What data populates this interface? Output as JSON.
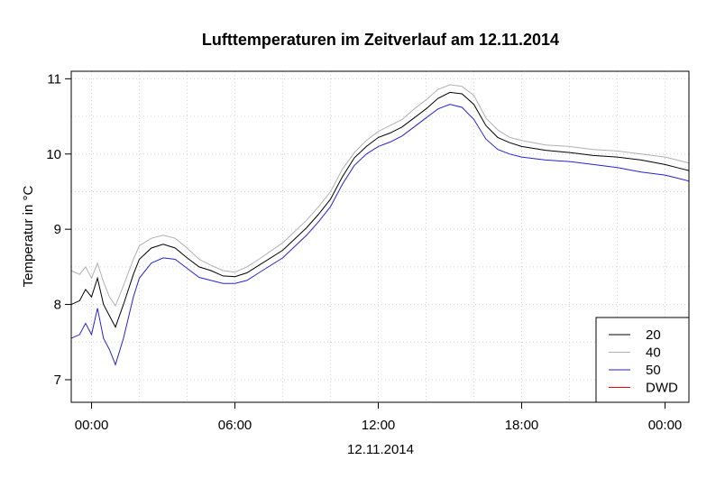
{
  "chart_data": {
    "type": "line",
    "title": "Lufttemperaturen im Zeitverlauf am 12.11.2014",
    "xlabel": "12.11.2014",
    "ylabel": "Temperatur in °C",
    "xlim": [
      "2014-11-11T23:09",
      "2014-11-13T01:00"
    ],
    "ylim": [
      6.7,
      11.1
    ],
    "x_ticks": [
      {
        "at": "2014-11-12T00:00",
        "label": "00:00"
      },
      {
        "at": "2014-11-12T06:00",
        "label": "06:00"
      },
      {
        "at": "2014-11-12T12:00",
        "label": "12:00"
      },
      {
        "at": "2014-11-12T18:00",
        "label": "18:00"
      },
      {
        "at": "2014-11-13T00:00",
        "label": "00:00"
      }
    ],
    "y_ticks": [
      7,
      8,
      9,
      10,
      11
    ],
    "grid": true,
    "legend_position": "bottom-right",
    "series": [
      {
        "name": "20",
        "color": "#000000",
        "x": [
          "2014-11-11T23:09",
          "2014-11-11T23:30",
          "2014-11-11T23:45",
          "2014-11-12T00:00",
          "2014-11-12T00:15",
          "2014-11-12T00:30",
          "2014-11-12T00:45",
          "2014-11-12T01:00",
          "2014-11-12T01:20",
          "2014-11-12T01:45",
          "2014-11-12T02:00",
          "2014-11-12T02:30",
          "2014-11-12T03:00",
          "2014-11-12T03:30",
          "2014-11-12T04:00",
          "2014-11-12T04:30",
          "2014-11-12T05:00",
          "2014-11-12T05:30",
          "2014-11-12T06:00",
          "2014-11-12T06:30",
          "2014-11-12T07:00",
          "2014-11-12T08:00",
          "2014-11-12T09:00",
          "2014-11-12T09:30",
          "2014-11-12T10:00",
          "2014-11-12T10:30",
          "2014-11-12T11:00",
          "2014-11-12T11:30",
          "2014-11-12T12:00",
          "2014-11-12T12:30",
          "2014-11-12T13:00",
          "2014-11-12T13:30",
          "2014-11-12T14:00",
          "2014-11-12T14:30",
          "2014-11-12T15:00",
          "2014-11-12T15:30",
          "2014-11-12T16:00",
          "2014-11-12T16:30",
          "2014-11-12T17:00",
          "2014-11-12T17:30",
          "2014-11-12T18:00",
          "2014-11-12T19:00",
          "2014-11-12T20:00",
          "2014-11-12T21:00",
          "2014-11-12T22:00",
          "2014-11-12T23:00",
          "2014-11-13T00:00",
          "2014-11-13T00:30",
          "2014-11-13T01:00"
        ],
        "values": [
          8.0,
          8.05,
          8.2,
          8.1,
          8.35,
          8.0,
          7.85,
          7.7,
          8.0,
          8.4,
          8.6,
          8.75,
          8.8,
          8.75,
          8.62,
          8.5,
          8.45,
          8.38,
          8.37,
          8.42,
          8.52,
          8.72,
          9.02,
          9.2,
          9.4,
          9.7,
          9.95,
          10.1,
          10.22,
          10.28,
          10.36,
          10.48,
          10.6,
          10.74,
          10.82,
          10.8,
          10.66,
          10.38,
          10.22,
          10.15,
          10.1,
          10.05,
          10.02,
          9.98,
          9.96,
          9.92,
          9.86,
          9.82,
          9.78
        ]
      },
      {
        "name": "40",
        "color": "#b0b0b0",
        "x": [
          "2014-11-11T23:09",
          "2014-11-11T23:30",
          "2014-11-11T23:45",
          "2014-11-12T00:00",
          "2014-11-12T00:15",
          "2014-11-12T00:30",
          "2014-11-12T00:45",
          "2014-11-12T01:00",
          "2014-11-12T01:20",
          "2014-11-12T01:45",
          "2014-11-12T02:00",
          "2014-11-12T02:30",
          "2014-11-12T03:00",
          "2014-11-12T03:30",
          "2014-11-12T04:00",
          "2014-11-12T04:30",
          "2014-11-12T05:00",
          "2014-11-12T05:30",
          "2014-11-12T06:00",
          "2014-11-12T06:30",
          "2014-11-12T07:00",
          "2014-11-12T08:00",
          "2014-11-12T09:00",
          "2014-11-12T09:30",
          "2014-11-12T10:00",
          "2014-11-12T10:30",
          "2014-11-12T11:00",
          "2014-11-12T11:30",
          "2014-11-12T12:00",
          "2014-11-12T12:30",
          "2014-11-12T13:00",
          "2014-11-12T13:30",
          "2014-11-12T14:00",
          "2014-11-12T14:30",
          "2014-11-12T15:00",
          "2014-11-12T15:30",
          "2014-11-12T16:00",
          "2014-11-12T16:30",
          "2014-11-12T17:00",
          "2014-11-12T17:30",
          "2014-11-12T18:00",
          "2014-11-12T19:00",
          "2014-11-12T20:00",
          "2014-11-12T21:00",
          "2014-11-12T22:00",
          "2014-11-12T23:00",
          "2014-11-13T00:00",
          "2014-11-13T00:30",
          "2014-11-13T01:00"
        ],
        "values": [
          8.45,
          8.4,
          8.5,
          8.35,
          8.55,
          8.3,
          8.1,
          7.98,
          8.25,
          8.6,
          8.78,
          8.88,
          8.92,
          8.88,
          8.75,
          8.6,
          8.52,
          8.45,
          8.43,
          8.5,
          8.6,
          8.82,
          9.12,
          9.3,
          9.5,
          9.8,
          10.02,
          10.18,
          10.3,
          10.38,
          10.46,
          10.6,
          10.72,
          10.86,
          10.92,
          10.9,
          10.78,
          10.48,
          10.32,
          10.22,
          10.18,
          10.12,
          10.1,
          10.06,
          10.04,
          10.0,
          9.96,
          9.92,
          9.88
        ]
      },
      {
        "name": "50",
        "color": "#2323d8",
        "x": [
          "2014-11-11T23:09",
          "2014-11-11T23:30",
          "2014-11-11T23:45",
          "2014-11-12T00:00",
          "2014-11-12T00:15",
          "2014-11-12T00:30",
          "2014-11-12T00:45",
          "2014-11-12T01:00",
          "2014-11-12T01:20",
          "2014-11-12T01:45",
          "2014-11-12T02:00",
          "2014-11-12T02:30",
          "2014-11-12T03:00",
          "2014-11-12T03:30",
          "2014-11-12T04:00",
          "2014-11-12T04:30",
          "2014-11-12T05:00",
          "2014-11-12T05:30",
          "2014-11-12T06:00",
          "2014-11-12T06:30",
          "2014-11-12T07:00",
          "2014-11-12T08:00",
          "2014-11-12T09:00",
          "2014-11-12T09:30",
          "2014-11-12T10:00",
          "2014-11-12T10:30",
          "2014-11-12T11:00",
          "2014-11-12T11:30",
          "2014-11-12T12:00",
          "2014-11-12T12:30",
          "2014-11-12T13:00",
          "2014-11-12T13:30",
          "2014-11-12T14:00",
          "2014-11-12T14:30",
          "2014-11-12T15:00",
          "2014-11-12T15:30",
          "2014-11-12T16:00",
          "2014-11-12T16:30",
          "2014-11-12T17:00",
          "2014-11-12T17:30",
          "2014-11-12T18:00",
          "2014-11-12T19:00",
          "2014-11-12T20:00",
          "2014-11-12T21:00",
          "2014-11-12T22:00",
          "2014-11-12T23:00",
          "2014-11-13T00:00",
          "2014-11-13T00:30",
          "2014-11-13T01:00"
        ],
        "values": [
          7.55,
          7.6,
          7.75,
          7.6,
          7.95,
          7.55,
          7.4,
          7.2,
          7.55,
          8.1,
          8.35,
          8.55,
          8.62,
          8.6,
          8.48,
          8.36,
          8.32,
          8.28,
          8.28,
          8.32,
          8.42,
          8.62,
          8.92,
          9.1,
          9.3,
          9.6,
          9.85,
          10.0,
          10.1,
          10.16,
          10.24,
          10.36,
          10.48,
          10.6,
          10.66,
          10.62,
          10.46,
          10.2,
          10.06,
          10.0,
          9.96,
          9.92,
          9.9,
          9.86,
          9.82,
          9.76,
          9.72,
          9.68,
          9.64
        ]
      },
      {
        "name": "DWD",
        "color": "#ff0000",
        "x": [],
        "values": []
      }
    ]
  }
}
